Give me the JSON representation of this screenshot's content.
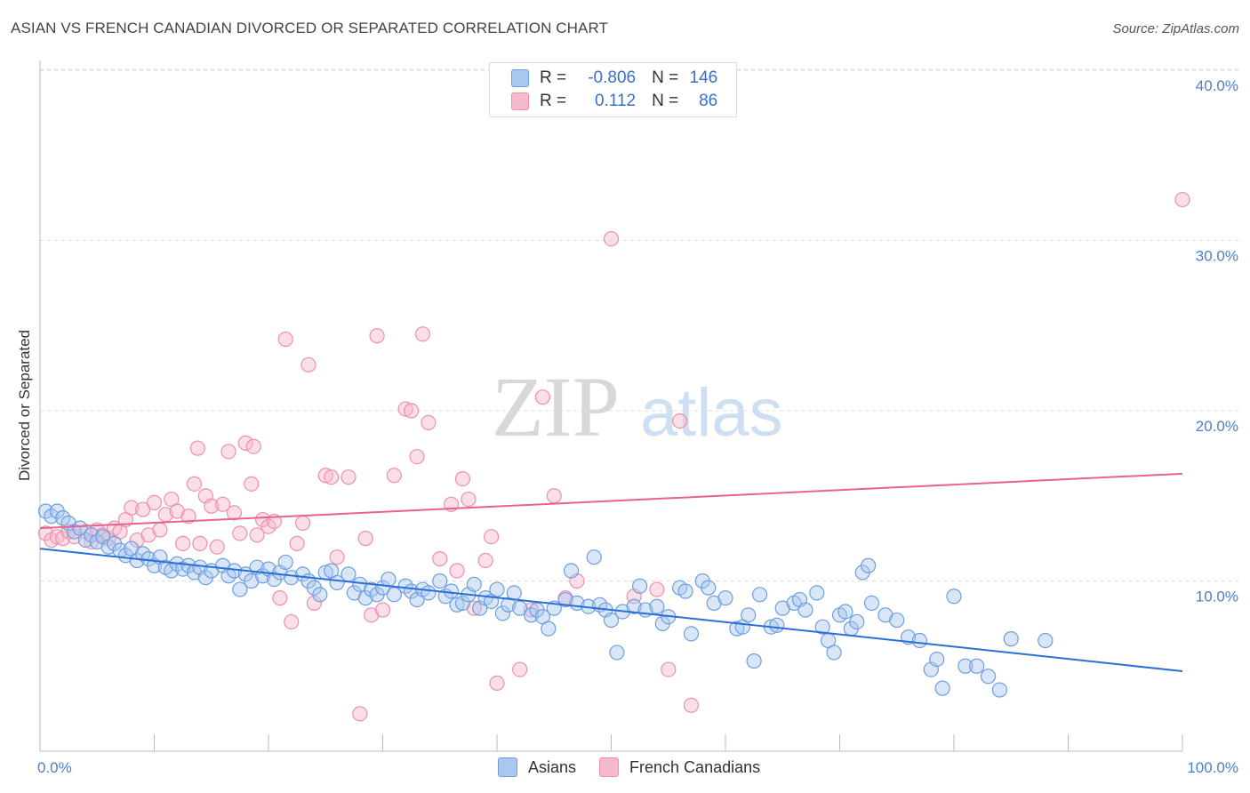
{
  "title": "ASIAN VS FRENCH CANADIAN DIVORCED OR SEPARATED CORRELATION CHART",
  "source": "Source: ZipAtlas.com",
  "watermark": {
    "zip": "ZIP",
    "atlas": "atlas"
  },
  "colors": {
    "asians_fill": "#a9c8f0",
    "asians_stroke": "#6f9ee0",
    "asians_line": "#2b6fd6",
    "fc_fill": "#f6b9cc",
    "fc_stroke": "#ee8fae",
    "fc_line": "#e8628f"
  },
  "legend": {
    "rows": [
      {
        "r_label": "R =",
        "r_value": "-0.806",
        "n_label": "N =",
        "n_value": "146"
      },
      {
        "r_label": "R =",
        "r_value": "0.112",
        "n_label": "N =",
        "n_value": "86"
      }
    ]
  },
  "bottom_legend": [
    "Asians",
    "French Canadians"
  ],
  "chart_data": {
    "type": "scatter",
    "title": "ASIAN VS FRENCH CANADIAN DIVORCED OR SEPARATED CORRELATION CHART",
    "xlabel": "",
    "ylabel": "Divorced or Separated",
    "xlim": [
      0,
      100
    ],
    "ylim": [
      0,
      42
    ],
    "x_tick_labels": [
      "0.0%",
      "100.0%"
    ],
    "y_ticks": [
      10,
      20,
      30,
      40
    ],
    "y_tick_labels": [
      "10.0%",
      "20.0%",
      "30.0%",
      "40.0%"
    ],
    "grid": "horizontal dashed",
    "legend_position": "top-center",
    "series": [
      {
        "name": "Asians",
        "r": -0.806,
        "n": 146,
        "trend": [
          [
            0,
            11.9
          ],
          [
            100,
            4.7
          ]
        ],
        "points": [
          [
            0.5,
            14.1
          ],
          [
            1,
            13.8
          ],
          [
            1.5,
            14.1
          ],
          [
            2,
            13.7
          ],
          [
            2.5,
            13.4
          ],
          [
            3,
            12.9
          ],
          [
            3.5,
            13.1
          ],
          [
            4,
            12.4
          ],
          [
            4.5,
            12.7
          ],
          [
            5,
            12.3
          ],
          [
            5.5,
            12.6
          ],
          [
            6,
            12.0
          ],
          [
            6.5,
            12.2
          ],
          [
            7,
            11.8
          ],
          [
            7.5,
            11.5
          ],
          [
            8,
            11.9
          ],
          [
            8.5,
            11.2
          ],
          [
            9,
            11.6
          ],
          [
            9.5,
            11.3
          ],
          [
            10,
            10.9
          ],
          [
            10.5,
            11.4
          ],
          [
            11,
            10.8
          ],
          [
            11.5,
            10.6
          ],
          [
            12,
            11.0
          ],
          [
            12.5,
            10.7
          ],
          [
            13,
            10.9
          ],
          [
            13.5,
            10.5
          ],
          [
            14,
            10.8
          ],
          [
            14.5,
            10.2
          ],
          [
            15,
            10.6
          ],
          [
            16,
            10.9
          ],
          [
            16.5,
            10.3
          ],
          [
            17,
            10.6
          ],
          [
            17.5,
            9.5
          ],
          [
            18,
            10.4
          ],
          [
            18.5,
            10.0
          ],
          [
            19,
            10.8
          ],
          [
            19.5,
            10.3
          ],
          [
            20,
            10.7
          ],
          [
            20.5,
            10.1
          ],
          [
            21,
            10.5
          ],
          [
            21.5,
            11.1
          ],
          [
            22,
            10.2
          ],
          [
            23,
            10.4
          ],
          [
            23.5,
            10.0
          ],
          [
            24,
            9.6
          ],
          [
            24.5,
            9.2
          ],
          [
            25,
            10.5
          ],
          [
            25.5,
            10.6
          ],
          [
            26,
            9.9
          ],
          [
            27,
            10.4
          ],
          [
            27.5,
            9.3
          ],
          [
            28,
            9.8
          ],
          [
            28.5,
            9.0
          ],
          [
            29,
            9.5
          ],
          [
            29.5,
            9.2
          ],
          [
            30,
            9.6
          ],
          [
            30.5,
            10.1
          ],
          [
            31,
            9.2
          ],
          [
            32,
            9.7
          ],
          [
            32.5,
            9.4
          ],
          [
            33,
            8.9
          ],
          [
            33.5,
            9.5
          ],
          [
            34,
            9.3
          ],
          [
            35,
            10.0
          ],
          [
            35.5,
            9.1
          ],
          [
            36,
            9.4
          ],
          [
            36.5,
            8.6
          ],
          [
            37,
            8.7
          ],
          [
            37.5,
            9.2
          ],
          [
            38,
            9.8
          ],
          [
            38.5,
            8.4
          ],
          [
            39,
            9.0
          ],
          [
            39.5,
            8.8
          ],
          [
            40,
            9.5
          ],
          [
            40.5,
            8.1
          ],
          [
            41,
            8.6
          ],
          [
            41.5,
            9.3
          ],
          [
            42,
            8.4
          ],
          [
            43,
            8.0
          ],
          [
            43.5,
            8.3
          ],
          [
            44,
            7.9
          ],
          [
            44.5,
            7.2
          ],
          [
            45,
            8.4
          ],
          [
            46,
            8.9
          ],
          [
            46.5,
            10.6
          ],
          [
            47,
            8.7
          ],
          [
            48,
            8.5
          ],
          [
            48.5,
            11.4
          ],
          [
            49,
            8.6
          ],
          [
            49.5,
            8.3
          ],
          [
            50,
            7.7
          ],
          [
            50.5,
            5.8
          ],
          [
            51,
            8.2
          ],
          [
            52,
            8.5
          ],
          [
            52.5,
            9.7
          ],
          [
            53,
            8.3
          ],
          [
            54,
            8.5
          ],
          [
            54.5,
            7.5
          ],
          [
            55,
            7.9
          ],
          [
            56,
            9.6
          ],
          [
            56.5,
            9.4
          ],
          [
            57,
            6.9
          ],
          [
            58,
            10.0
          ],
          [
            58.5,
            9.6
          ],
          [
            59,
            8.7
          ],
          [
            60,
            9.0
          ],
          [
            61,
            7.2
          ],
          [
            61.5,
            7.3
          ],
          [
            62,
            8.0
          ],
          [
            62.5,
            5.3
          ],
          [
            63,
            9.2
          ],
          [
            64,
            7.3
          ],
          [
            64.5,
            7.4
          ],
          [
            65,
            8.4
          ],
          [
            66,
            8.7
          ],
          [
            66.5,
            8.9
          ],
          [
            67,
            8.3
          ],
          [
            68,
            9.3
          ],
          [
            68.5,
            7.3
          ],
          [
            69,
            6.5
          ],
          [
            69.5,
            5.8
          ],
          [
            70,
            8.0
          ],
          [
            70.5,
            8.2
          ],
          [
            71,
            7.2
          ],
          [
            71.5,
            7.6
          ],
          [
            72,
            10.5
          ],
          [
            72.5,
            10.9
          ],
          [
            72.8,
            8.7
          ],
          [
            74,
            8.0
          ],
          [
            75,
            7.7
          ],
          [
            76,
            6.7
          ],
          [
            77,
            6.5
          ],
          [
            78,
            4.8
          ],
          [
            78.5,
            5.4
          ],
          [
            79,
            3.7
          ],
          [
            80,
            9.1
          ],
          [
            81,
            5.0
          ],
          [
            82,
            5.0
          ],
          [
            83,
            4.4
          ],
          [
            84,
            3.6
          ],
          [
            85,
            6.6
          ],
          [
            88,
            6.5
          ]
        ]
      },
      {
        "name": "French Canadians",
        "r": 0.112,
        "n": 86,
        "trend": [
          [
            0,
            13.1
          ],
          [
            100,
            16.3
          ]
        ],
        "points": [
          [
            0.5,
            12.8
          ],
          [
            1,
            12.4
          ],
          [
            1.5,
            12.6
          ],
          [
            2,
            12.5
          ],
          [
            2.5,
            12.9
          ],
          [
            3,
            12.6
          ],
          [
            4,
            12.9
          ],
          [
            4.5,
            12.3
          ],
          [
            5,
            13.0
          ],
          [
            5.5,
            12.7
          ],
          [
            6,
            12.5
          ],
          [
            6.5,
            13.1
          ],
          [
            7,
            12.9
          ],
          [
            7.5,
            13.6
          ],
          [
            8,
            14.3
          ],
          [
            8.5,
            12.4
          ],
          [
            9,
            14.2
          ],
          [
            9.5,
            12.7
          ],
          [
            10,
            14.6
          ],
          [
            10.5,
            13.0
          ],
          [
            11,
            13.9
          ],
          [
            11.5,
            14.8
          ],
          [
            12,
            14.1
          ],
          [
            12.5,
            12.2
          ],
          [
            13,
            13.8
          ],
          [
            13.5,
            15.7
          ],
          [
            13.8,
            17.8
          ],
          [
            14,
            12.2
          ],
          [
            14.5,
            15.0
          ],
          [
            15,
            14.4
          ],
          [
            15.5,
            12.0
          ],
          [
            16,
            14.5
          ],
          [
            16.5,
            17.6
          ],
          [
            17,
            14.0
          ],
          [
            17.5,
            12.8
          ],
          [
            18,
            18.1
          ],
          [
            18.5,
            15.7
          ],
          [
            18.7,
            17.9
          ],
          [
            19,
            12.7
          ],
          [
            19.5,
            13.6
          ],
          [
            20,
            13.2
          ],
          [
            20.5,
            13.5
          ],
          [
            21,
            9.0
          ],
          [
            21.5,
            24.2
          ],
          [
            22,
            7.6
          ],
          [
            22.5,
            12.2
          ],
          [
            23,
            13.4
          ],
          [
            23.5,
            22.7
          ],
          [
            24,
            8.7
          ],
          [
            25,
            16.2
          ],
          [
            25.5,
            16.1
          ],
          [
            26,
            11.4
          ],
          [
            27,
            16.1
          ],
          [
            28,
            2.2
          ],
          [
            28.5,
            12.5
          ],
          [
            29,
            8.0
          ],
          [
            29.5,
            24.4
          ],
          [
            30,
            8.3
          ],
          [
            31,
            16.2
          ],
          [
            32,
            20.1
          ],
          [
            32.5,
            20.0
          ],
          [
            33,
            17.3
          ],
          [
            33.5,
            24.5
          ],
          [
            34,
            19.3
          ],
          [
            35,
            11.3
          ],
          [
            36,
            14.5
          ],
          [
            36.5,
            10.6
          ],
          [
            37,
            16.0
          ],
          [
            37.5,
            14.8
          ],
          [
            38,
            8.4
          ],
          [
            39,
            11.2
          ],
          [
            39.5,
            12.6
          ],
          [
            40,
            4.0
          ],
          [
            42,
            4.8
          ],
          [
            43,
            8.3
          ],
          [
            44,
            20.8
          ],
          [
            45,
            15.0
          ],
          [
            46,
            9.0
          ],
          [
            47,
            10.0
          ],
          [
            50,
            30.1
          ],
          [
            52,
            9.1
          ],
          [
            54,
            9.5
          ],
          [
            55,
            4.8
          ],
          [
            56,
            19.4
          ],
          [
            57,
            2.7
          ],
          [
            100,
            32.4
          ]
        ]
      }
    ]
  }
}
